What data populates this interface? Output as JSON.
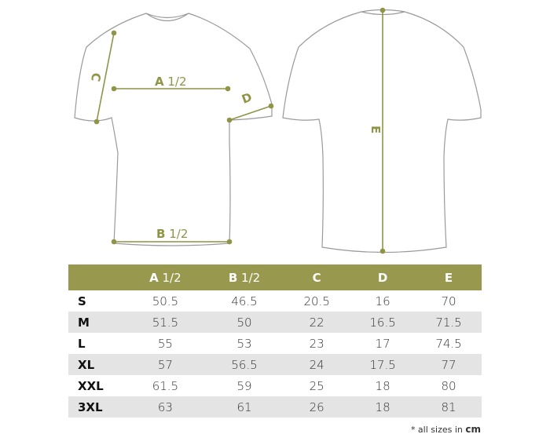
{
  "colors": {
    "accent": "#98994e",
    "line": "#8f9447",
    "outline": "#9a9a9a",
    "row_alt": "#e4e4e4"
  },
  "diagram": {
    "front_labels": {
      "a": "A",
      "a_frac": "1/2",
      "b": "B",
      "b_frac": "1/2",
      "c": "C",
      "d": "D"
    },
    "back_labels": {
      "e": "E"
    }
  },
  "table": {
    "headers": [
      {
        "key": "",
        "frac": ""
      },
      {
        "key": "A",
        "frac": " 1/2"
      },
      {
        "key": "B",
        "frac": " 1/2"
      },
      {
        "key": "C",
        "frac": ""
      },
      {
        "key": "D",
        "frac": ""
      },
      {
        "key": "E",
        "frac": ""
      }
    ],
    "rows": [
      [
        "S",
        "50.5",
        "46.5",
        "20.5",
        "16",
        "70"
      ],
      [
        "M",
        "51.5",
        "50",
        "22",
        "16.5",
        "71.5"
      ],
      [
        "L",
        "55",
        "53",
        "23",
        "17",
        "74.5"
      ],
      [
        "XL",
        "57",
        "56.5",
        "24",
        "17.5",
        "77"
      ],
      [
        "XXL",
        "61.5",
        "59",
        "25",
        "18",
        "80"
      ],
      [
        "3XL",
        "63",
        "61",
        "26",
        "18",
        "81"
      ]
    ]
  },
  "note": {
    "prefix": "* all sizes in ",
    "unit": "cm"
  }
}
